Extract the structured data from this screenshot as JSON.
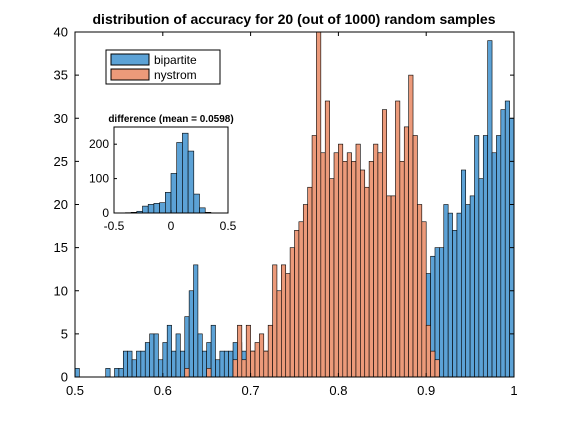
{
  "chart_data": [
    {
      "type": "bar",
      "title": "distribution of accuracy for 20 (out of 1000) random samples",
      "xlim": [
        0.5,
        1
      ],
      "ylim": [
        0,
        40
      ],
      "xticks": [
        0.5,
        0.6,
        0.7,
        0.8,
        0.9,
        1
      ],
      "xtick_labels": [
        "0.5",
        "0.6",
        "0.7",
        "0.8",
        "0.9",
        "1"
      ],
      "yticks": [
        0,
        5,
        10,
        15,
        20,
        25,
        30,
        35,
        40
      ],
      "ytick_labels": [
        "0",
        "5",
        "10",
        "15",
        "20",
        "25",
        "30",
        "35",
        "40"
      ],
      "bin_width": 0.005,
      "legend_position": "top-left",
      "series": [
        {
          "name": "bipartite",
          "color": "#5ca2d6",
          "bins": [
            [
              0.5,
              1
            ],
            [
              0.535,
              1
            ],
            [
              0.545,
              1
            ],
            [
              0.55,
              1
            ],
            [
              0.555,
              3
            ],
            [
              0.56,
              3
            ],
            [
              0.565,
              2
            ],
            [
              0.57,
              3
            ],
            [
              0.575,
              3
            ],
            [
              0.58,
              4
            ],
            [
              0.585,
              5
            ],
            [
              0.59,
              5
            ],
            [
              0.595,
              2
            ],
            [
              0.6,
              4
            ],
            [
              0.605,
              6
            ],
            [
              0.61,
              3
            ],
            [
              0.615,
              5
            ],
            [
              0.62,
              3
            ],
            [
              0.625,
              7
            ],
            [
              0.63,
              10
            ],
            [
              0.635,
              13
            ],
            [
              0.64,
              5
            ],
            [
              0.645,
              3
            ],
            [
              0.65,
              4
            ],
            [
              0.655,
              6
            ],
            [
              0.66,
              2
            ],
            [
              0.665,
              3
            ],
            [
              0.67,
              3
            ],
            [
              0.675,
              3
            ],
            [
              0.68,
              4
            ],
            [
              0.685,
              4
            ],
            [
              0.69,
              3
            ],
            [
              0.695,
              2
            ],
            [
              0.7,
              3
            ],
            [
              0.705,
              2
            ],
            [
              0.71,
              2
            ],
            [
              0.715,
              3
            ],
            [
              0.72,
              3
            ],
            [
              0.725,
              2
            ],
            [
              0.73,
              3
            ],
            [
              0.735,
              3
            ],
            [
              0.74,
              3
            ],
            [
              0.745,
              3
            ],
            [
              0.75,
              2
            ],
            [
              0.755,
              2
            ],
            [
              0.76,
              5
            ],
            [
              0.765,
              3
            ],
            [
              0.77,
              2
            ],
            [
              0.775,
              2
            ],
            [
              0.78,
              5
            ],
            [
              0.785,
              3
            ],
            [
              0.79,
              7
            ],
            [
              0.795,
              8
            ],
            [
              0.8,
              8
            ],
            [
              0.805,
              8
            ],
            [
              0.81,
              7
            ],
            [
              0.815,
              9
            ],
            [
              0.82,
              6
            ],
            [
              0.825,
              9
            ],
            [
              0.83,
              10
            ],
            [
              0.835,
              8
            ],
            [
              0.84,
              11
            ],
            [
              0.845,
              10
            ],
            [
              0.85,
              9
            ],
            [
              0.855,
              11
            ],
            [
              0.86,
              9
            ],
            [
              0.865,
              14
            ],
            [
              0.87,
              13
            ],
            [
              0.875,
              15
            ],
            [
              0.88,
              12
            ],
            [
              0.885,
              14
            ],
            [
              0.89,
              15
            ],
            [
              0.895,
              16
            ],
            [
              0.9,
              12
            ],
            [
              0.905,
              14
            ],
            [
              0.91,
              15
            ],
            [
              0.915,
              15
            ],
            [
              0.92,
              20
            ],
            [
              0.925,
              19
            ],
            [
              0.93,
              17
            ],
            [
              0.935,
              19
            ],
            [
              0.94,
              24
            ],
            [
              0.945,
              20
            ],
            [
              0.95,
              21
            ],
            [
              0.955,
              28
            ],
            [
              0.96,
              23
            ],
            [
              0.965,
              28
            ],
            [
              0.97,
              39
            ],
            [
              0.975,
              26
            ],
            [
              0.98,
              28
            ],
            [
              0.985,
              31
            ],
            [
              0.99,
              32
            ],
            [
              0.995,
              30
            ]
          ]
        },
        {
          "name": "nystrom",
          "color": "#ec9a7a",
          "bins": [
            [
              0.625,
              1
            ],
            [
              0.65,
              1
            ],
            [
              0.68,
              2
            ],
            [
              0.685,
              6
            ],
            [
              0.69,
              2
            ],
            [
              0.695,
              6
            ],
            [
              0.7,
              3
            ],
            [
              0.705,
              4
            ],
            [
              0.71,
              5
            ],
            [
              0.715,
              3
            ],
            [
              0.72,
              6
            ],
            [
              0.725,
              13
            ],
            [
              0.73,
              10
            ],
            [
              0.735,
              13
            ],
            [
              0.74,
              12
            ],
            [
              0.745,
              15
            ],
            [
              0.75,
              17
            ],
            [
              0.755,
              18
            ],
            [
              0.76,
              20
            ],
            [
              0.765,
              22
            ],
            [
              0.77,
              28
            ],
            [
              0.775,
              40
            ],
            [
              0.78,
              26
            ],
            [
              0.785,
              32
            ],
            [
              0.79,
              23
            ],
            [
              0.795,
              26
            ],
            [
              0.8,
              27
            ],
            [
              0.805,
              25
            ],
            [
              0.81,
              26
            ],
            [
              0.815,
              25
            ],
            [
              0.82,
              27
            ],
            [
              0.825,
              24
            ],
            [
              0.83,
              22
            ],
            [
              0.835,
              25
            ],
            [
              0.84,
              27
            ],
            [
              0.845,
              26
            ],
            [
              0.85,
              31
            ],
            [
              0.855,
              21
            ],
            [
              0.86,
              21
            ],
            [
              0.865,
              32
            ],
            [
              0.87,
              25
            ],
            [
              0.875,
              29
            ],
            [
              0.88,
              35
            ],
            [
              0.885,
              28
            ],
            [
              0.89,
              20
            ],
            [
              0.895,
              18
            ],
            [
              0.9,
              6
            ],
            [
              0.905,
              3
            ],
            [
              0.91,
              2
            ]
          ]
        }
      ]
    },
    {
      "type": "bar",
      "title": "difference (mean = 0.0598)",
      "xlim": [
        -0.5,
        0.5
      ],
      "ylim": [
        0,
        250
      ],
      "xticks": [
        -0.5,
        0,
        0.5
      ],
      "xtick_labels": [
        "-0.5",
        "0",
        "0.5"
      ],
      "yticks": [
        0,
        100,
        200
      ],
      "ytick_labels": [
        "0",
        "100",
        "200"
      ],
      "color": "#5ca2d6",
      "bins": [
        [
          -0.375,
          1
        ],
        [
          -0.325,
          2
        ],
        [
          -0.275,
          5
        ],
        [
          -0.225,
          20
        ],
        [
          -0.175,
          25
        ],
        [
          -0.125,
          28
        ],
        [
          -0.075,
          30
        ],
        [
          -0.025,
          60
        ],
        [
          0.025,
          115
        ],
        [
          0.075,
          205
        ],
        [
          0.125,
          232
        ],
        [
          0.175,
          180
        ],
        [
          0.225,
          55
        ],
        [
          0.275,
          15
        ],
        [
          0.325,
          2
        ]
      ]
    }
  ]
}
